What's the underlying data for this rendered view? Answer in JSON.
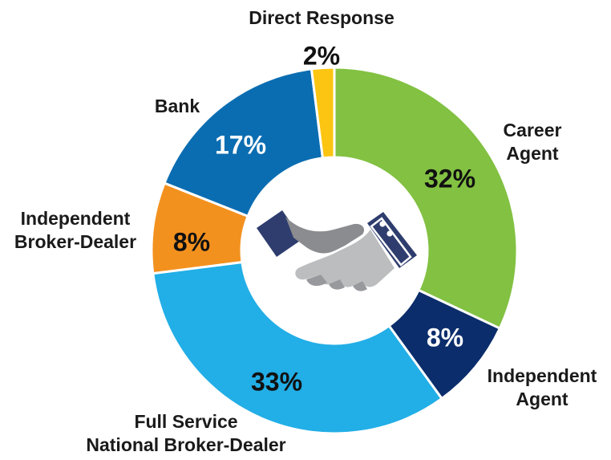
{
  "chart_data": {
    "type": "pie",
    "donut": true,
    "unit": "%",
    "center_icon": "handshake-icon",
    "categories": [
      "Career Agent",
      "Independent Agent",
      "Full Service National Broker-Dealer",
      "Independent Broker-Dealer",
      "Bank",
      "Direct Response"
    ],
    "values": [
      32,
      8,
      33,
      8,
      17,
      2
    ],
    "value_labels": [
      "32%",
      "8%",
      "33%",
      "8%",
      "17%",
      "2%"
    ],
    "label_lines": [
      [
        "Career",
        "Agent"
      ],
      [
        "Independent",
        "Agent"
      ],
      [
        "Full Service",
        "National Broker-Dealer"
      ],
      [
        "Independent",
        "Broker-Dealer"
      ],
      [
        "Bank"
      ],
      [
        "Direct Response"
      ]
    ],
    "colors": [
      "#82c142",
      "#0b2d6b",
      "#22aee6",
      "#f3911f",
      "#0b6db1",
      "#fcc512"
    ],
    "value_label_colors": [
      "#111111",
      "#ffffff",
      "#111111",
      "#111111",
      "#ffffff",
      "#111111"
    ],
    "start_angle_deg": 0,
    "direction": "clockwise"
  }
}
